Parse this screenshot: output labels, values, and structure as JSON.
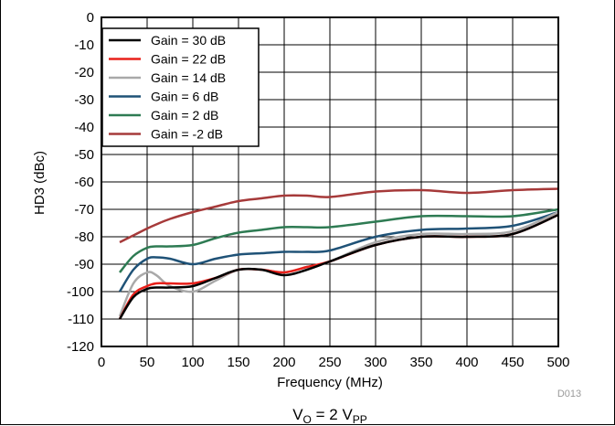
{
  "chart_data": {
    "type": "line",
    "xlabel": "Frequency (MHz)",
    "ylabel": "HD3 (dBc)",
    "xlim": [
      0,
      500
    ],
    "ylim": [
      -120,
      0
    ],
    "xticks": [
      0,
      50,
      100,
      150,
      200,
      250,
      300,
      350,
      400,
      450,
      500
    ],
    "yticks": [
      0,
      -10,
      -20,
      -30,
      -40,
      -50,
      -60,
      -70,
      -80,
      -90,
      -100,
      -110,
      -120
    ],
    "grid": true,
    "legend_position": "top-left",
    "x": [
      20,
      35,
      50,
      60,
      75,
      100,
      125,
      150,
      175,
      200,
      225,
      250,
      300,
      350,
      400,
      450,
      500
    ],
    "series": [
      {
        "name": "Gain = 30 dB",
        "color": "#000000",
        "values": [
          -110,
          -102,
          -99,
          -98.5,
          -98.5,
          -98,
          -95,
          -92,
          -92,
          -94,
          -92,
          -89,
          -83,
          -80,
          -80,
          -79,
          -72
        ]
      },
      {
        "name": "Gain = 22 dB",
        "color": "#e8201a",
        "values": [
          -110,
          -101,
          -98,
          -97,
          -97,
          -97,
          -95,
          -92,
          -92,
          -93,
          -91,
          -89,
          -83,
          -80,
          -80,
          -79,
          -72
        ]
      },
      {
        "name": "Gain = 14 dB",
        "color": "#a9a9a9",
        "values": [
          -109,
          -97,
          -93,
          -94,
          -98,
          -100,
          -96,
          -92,
          -92,
          -93,
          -91,
          -89,
          -82,
          -79,
          -79,
          -78,
          -71
        ]
      },
      {
        "name": "Gain = 6 dB",
        "color": "#1f5277",
        "values": [
          -100,
          -92,
          -88,
          -87.5,
          -88,
          -90,
          -88,
          -86.5,
          -86,
          -85.5,
          -85.5,
          -85,
          -80,
          -77.5,
          -77,
          -76,
          -71
        ]
      },
      {
        "name": "Gain = 2 dB",
        "color": "#2e7b53",
        "values": [
          -93,
          -87,
          -84,
          -83.5,
          -83.5,
          -83,
          -80.5,
          -78.5,
          -77.5,
          -76.5,
          -76.5,
          -76.5,
          -74.5,
          -72.5,
          -72.5,
          -72.5,
          -70
        ]
      },
      {
        "name": "Gain = -2 dB",
        "color": "#a63a3a",
        "values": [
          -82,
          -79.5,
          -77,
          -75.5,
          -73.5,
          -71,
          -69,
          -67,
          -66,
          -65,
          -65,
          -65.5,
          -63.5,
          -63,
          -64,
          -63,
          -62.5
        ]
      }
    ],
    "annotations": {
      "corner_code": "D013",
      "caption_main": "V",
      "caption_sub1": "O",
      "caption_mid": " = 2 V",
      "caption_sub2": "PP"
    }
  }
}
